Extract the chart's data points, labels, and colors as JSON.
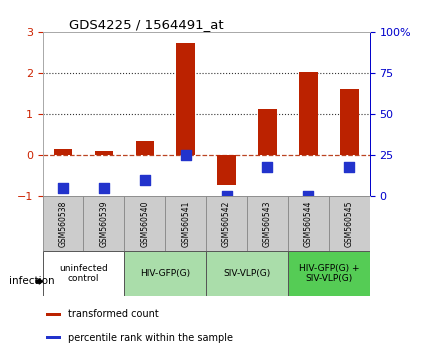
{
  "title": "GDS4225 / 1564491_at",
  "samples": [
    "GSM560538",
    "GSM560539",
    "GSM560540",
    "GSM560541",
    "GSM560542",
    "GSM560543",
    "GSM560544",
    "GSM560545"
  ],
  "transformed_counts": [
    0.15,
    0.1,
    0.35,
    2.72,
    -0.72,
    1.12,
    2.02,
    1.6
  ],
  "percentile_ranks": [
    5,
    5,
    10,
    25,
    0,
    18,
    0,
    18
  ],
  "ylim_left": [
    -1,
    3
  ],
  "ylim_right": [
    0,
    100
  ],
  "yticks_left": [
    -1,
    0,
    1,
    2,
    3
  ],
  "ytick_labels_right": [
    "0",
    "25",
    "50",
    "75",
    "100%"
  ],
  "bar_color": "#bb2200",
  "dot_color": "#2233cc",
  "dotted_line_color": "#333333",
  "dashed_line_color": "#bb4422",
  "groups": [
    {
      "label": "uninfected\ncontrol",
      "start": 0,
      "end": 2,
      "color": "#ffffff"
    },
    {
      "label": "HIV-GFP(G)",
      "start": 2,
      "end": 4,
      "color": "#aaddaa"
    },
    {
      "label": "SIV-VLP(G)",
      "start": 4,
      "end": 6,
      "color": "#aaddaa"
    },
    {
      "label": "HIV-GFP(G) +\nSIV-VLP(G)",
      "start": 6,
      "end": 8,
      "color": "#55cc55"
    }
  ],
  "sample_box_color": "#cccccc",
  "tick_label_color_left": "#cc2200",
  "tick_label_color_right": "#0000cc",
  "legend_items": [
    {
      "color": "#bb2200",
      "label": "transformed count"
    },
    {
      "color": "#2233cc",
      "label": "percentile rank within the sample"
    }
  ],
  "xlabel_infection": "infection",
  "bar_width": 0.45,
  "dot_size": 55,
  "background_color": "#ffffff"
}
